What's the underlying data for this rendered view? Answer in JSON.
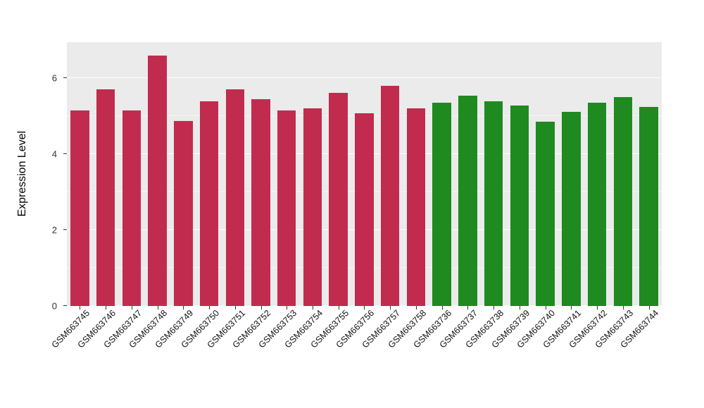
{
  "chart_data": {
    "type": "bar",
    "title": "",
    "ylabel": "Expression Level",
    "xlabel": "",
    "ylim": [
      0,
      6.95
    ],
    "yticks_major": [
      0,
      2,
      4,
      6
    ],
    "yticks_minor": [
      1,
      3,
      5
    ],
    "grid": "on",
    "legend_position": "none",
    "panel_background": "#EBEBEB",
    "gridline_color": "#ffffff",
    "categories": [
      "GSM663745",
      "GSM663746",
      "GSM663747",
      "GSM663748",
      "GSM663749",
      "GSM663750",
      "GSM663751",
      "GSM663752",
      "GSM663753",
      "GSM663754",
      "GSM663755",
      "GSM663756",
      "GSM663757",
      "GSM663758",
      "GSM663736",
      "GSM663737",
      "GSM663738",
      "GSM663739",
      "GSM663740",
      "GSM663741",
      "GSM663742",
      "GSM663743",
      "GSM663744"
    ],
    "values": [
      5.15,
      5.7,
      5.15,
      6.6,
      4.87,
      5.4,
      5.7,
      5.45,
      5.15,
      5.2,
      5.62,
      5.08,
      5.8,
      5.2,
      5.35,
      5.55,
      5.4,
      5.28,
      4.85,
      5.12,
      5.35,
      5.5,
      5.25
    ],
    "groups": [
      "red",
      "red",
      "red",
      "red",
      "red",
      "red",
      "red",
      "red",
      "red",
      "red",
      "red",
      "red",
      "red",
      "red",
      "green",
      "green",
      "green",
      "green",
      "green",
      "green",
      "green",
      "green",
      "green"
    ],
    "group_colors": {
      "red": "#C12C4E",
      "green": "#1F8A1F"
    }
  }
}
